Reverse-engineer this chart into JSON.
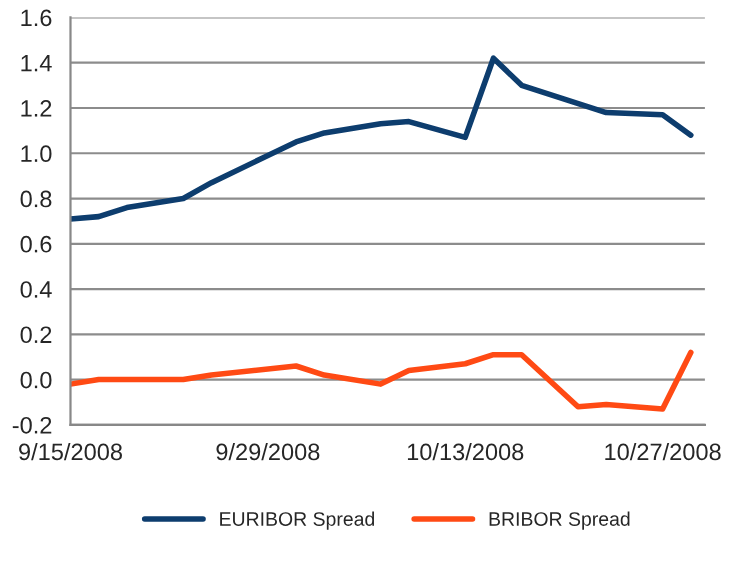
{
  "chart_data": {
    "type": "line",
    "xlim": [
      "2008-09-15",
      "2008-10-30"
    ],
    "xticks": [
      {
        "value": "2008-09-15",
        "label": "9/15/2008"
      },
      {
        "value": "2008-09-29",
        "label": "9/29/2008"
      },
      {
        "value": "2008-10-13",
        "label": "10/13/2008"
      },
      {
        "value": "2008-10-27",
        "label": "10/27/2008"
      }
    ],
    "ylim": [
      -0.2,
      1.6
    ],
    "yticks": [
      {
        "value": -0.2,
        "label": "-0.2"
      },
      {
        "value": 0,
        "label": "0.0"
      },
      {
        "value": 0.2,
        "label": "0.2"
      },
      {
        "value": 0.4,
        "label": "0.4"
      },
      {
        "value": 0.6,
        "label": "0.6"
      },
      {
        "value": 0.8,
        "label": "0.8"
      },
      {
        "value": 1.0,
        "label": "1.0"
      },
      {
        "value": 1.2,
        "label": "1.2"
      },
      {
        "value": 1.4,
        "label": "1.4"
      },
      {
        "value": 1.6,
        "label": "1.6"
      }
    ],
    "grid": "y",
    "legend": "bottom",
    "marker": "none",
    "line_style": "solid",
    "series": [
      {
        "name": "EURIBOR Spread",
        "color": "#0d3d6e",
        "x": [
          "2008-09-15",
          "2008-09-17",
          "2008-09-19",
          "2008-09-23",
          "2008-09-25",
          "2008-09-29",
          "2008-10-01",
          "2008-10-03",
          "2008-10-07",
          "2008-10-09",
          "2008-10-13",
          "2008-10-15",
          "2008-10-17",
          "2008-10-23",
          "2008-10-27",
          "2008-10-29"
        ],
        "values": [
          0.71,
          0.72,
          0.76,
          0.8,
          0.87,
          0.99,
          1.05,
          1.09,
          1.13,
          1.14,
          1.07,
          1.42,
          1.3,
          1.18,
          1.17,
          1.08
        ]
      },
      {
        "name": "BRIBOR Spread",
        "color": "#ff4a14",
        "x": [
          "2008-09-15",
          "2008-09-17",
          "2008-09-23",
          "2008-09-25",
          "2008-10-01",
          "2008-10-03",
          "2008-10-07",
          "2008-10-09",
          "2008-10-13",
          "2008-10-15",
          "2008-10-17",
          "2008-10-21",
          "2008-10-23",
          "2008-10-27",
          "2008-10-29"
        ],
        "values": [
          -0.02,
          0.0,
          0.0,
          0.02,
          0.06,
          0.02,
          -0.02,
          0.04,
          0.07,
          0.11,
          0.11,
          -0.12,
          -0.11,
          -0.13,
          0.12
        ]
      }
    ]
  }
}
